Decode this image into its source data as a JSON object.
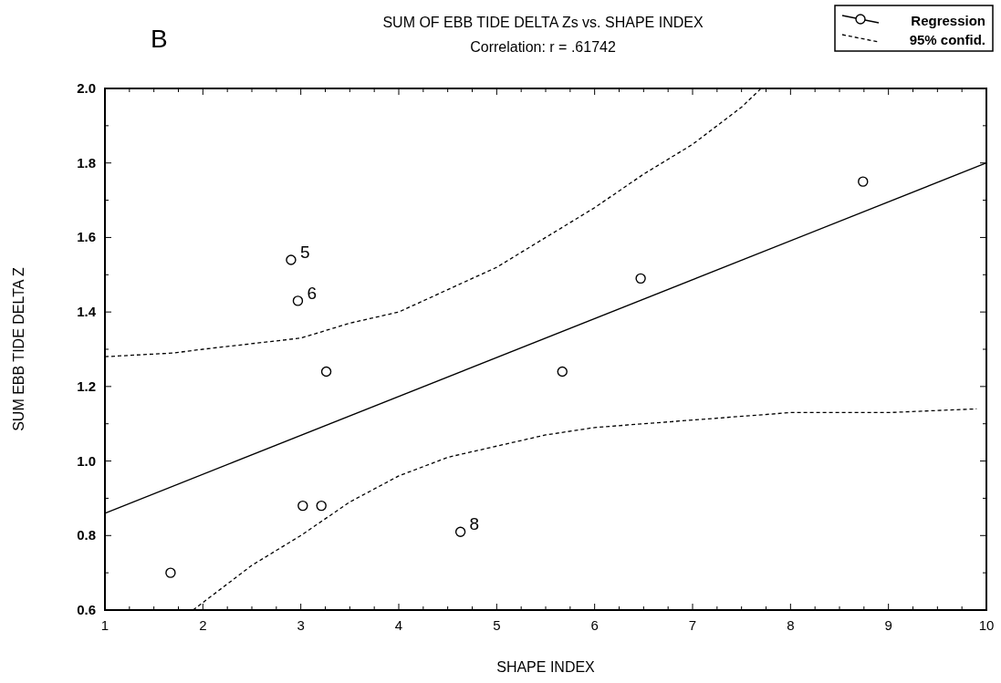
{
  "chart_data": {
    "type": "scatter",
    "title": "SUM OF EBB TIDE DELTA Zs vs. SHAPE INDEX",
    "subtitle": "Correlation: r = .61742",
    "xlabel": "SHAPE INDEX",
    "ylabel": "SUM EBB TIDE DELTA Z",
    "xlim": [
      1,
      10
    ],
    "ylim": [
      0.6,
      2.0
    ],
    "xticks": [
      1,
      {
        "value": 1.25,
        "label": null
      },
      {
        "value": 1.5,
        "label": null
      },
      {
        "value": 1.75,
        "label": null
      },
      2,
      {
        "value": 2.25,
        "label": null
      },
      {
        "value": 2.5,
        "label": null
      },
      {
        "value": 2.75,
        "label": null
      },
      3,
      {
        "value": 3.25,
        "label": null
      },
      {
        "value": 3.5,
        "label": null
      },
      {
        "value": 3.75,
        "label": null
      },
      4,
      {
        "value": 4.25,
        "label": null
      },
      {
        "value": 4.5,
        "label": null
      },
      {
        "value": 4.75,
        "label": null
      },
      5,
      {
        "value": 5.25,
        "label": null
      },
      {
        "value": 5.5,
        "label": null
      },
      {
        "value": 5.75,
        "label": null
      },
      6,
      {
        "value": 6.25,
        "label": null
      },
      {
        "value": 6.5,
        "label": null
      },
      {
        "value": 6.75,
        "label": null
      },
      7,
      {
        "value": 7.25,
        "label": null
      },
      {
        "value": 7.5,
        "label": null
      },
      {
        "value": 7.75,
        "label": null
      },
      8,
      {
        "value": 8.25,
        "label": null
      },
      {
        "value": 8.5,
        "label": null
      },
      {
        "value": 8.75,
        "label": null
      },
      9,
      {
        "value": 9.25,
        "label": null
      },
      {
        "value": 9.5,
        "label": null
      },
      {
        "value": 9.75,
        "label": null
      },
      10
    ],
    "yticks": [
      {
        "value": 0.6,
        "label": "0.6"
      },
      {
        "value": 0.7,
        "label": null
      },
      {
        "value": 0.8,
        "label": "0.8"
      },
      {
        "value": 0.9,
        "label": null
      },
      {
        "value": 1.0,
        "label": "1.0"
      },
      {
        "value": 1.1,
        "label": null
      },
      {
        "value": 1.2,
        "label": "1.2"
      },
      {
        "value": 1.3,
        "label": null
      },
      {
        "value": 1.4,
        "label": "1.4"
      },
      {
        "value": 1.5,
        "label": null
      },
      {
        "value": 1.6,
        "label": "1.6"
      },
      {
        "value": 1.7,
        "label": null
      },
      {
        "value": 1.8,
        "label": "1.8"
      },
      {
        "value": 1.9,
        "label": null
      },
      {
        "value": 2.0,
        "label": "2.0"
      }
    ],
    "grid": false,
    "legend": "top right",
    "series": [
      {
        "marker": "circle",
        "color": "#000000",
        "x": [
          1.67,
          2.9,
          2.97,
          3.26,
          3.02,
          3.21,
          4.63,
          5.67,
          6.47,
          8.74
        ],
        "values": [
          0.7,
          1.54,
          1.43,
          1.24,
          0.88,
          0.88,
          0.81,
          1.24,
          1.49,
          1.75
        ]
      },
      {
        "type": "line",
        "name": "Regression",
        "marker": "none",
        "line_style": "solid",
        "color": "#000000",
        "x": [
          1,
          10
        ],
        "values": [
          0.86,
          1.8
        ]
      },
      {
        "type": "line",
        "name": "95% confid.",
        "marker": "none",
        "line_style": "dashed",
        "color": "#000000",
        "x": [
          1,
          1.7,
          2,
          3,
          3.5,
          4,
          4.5,
          5,
          5.5,
          6,
          6.5,
          7,
          7.5,
          7.7
        ],
        "values": [
          1.28,
          1.29,
          1.3,
          1.33,
          1.37,
          1.4,
          1.46,
          1.52,
          1.6,
          1.68,
          1.77,
          1.85,
          1.95,
          2.0
        ]
      },
      {
        "type": "line",
        "marker": "none",
        "line_style": "dashed",
        "color": "#000000",
        "x": [
          1.9,
          2.5,
          3,
          3.5,
          4,
          4.5,
          5,
          5.5,
          6,
          6.5,
          7,
          8,
          9,
          9.9
        ],
        "values": [
          0.6,
          0.72,
          0.8,
          0.89,
          0.96,
          1.01,
          1.04,
          1.07,
          1.09,
          1.1,
          1.11,
          1.13,
          1.13,
          1.14
        ]
      }
    ],
    "annotations": [
      "B",
      {
        "text": "5",
        "x": 2.9,
        "y": 1.54
      },
      {
        "text": "6",
        "x": 2.97,
        "y": 1.43
      },
      {
        "text": "8",
        "x": 4.63,
        "y": 0.81
      }
    ]
  }
}
